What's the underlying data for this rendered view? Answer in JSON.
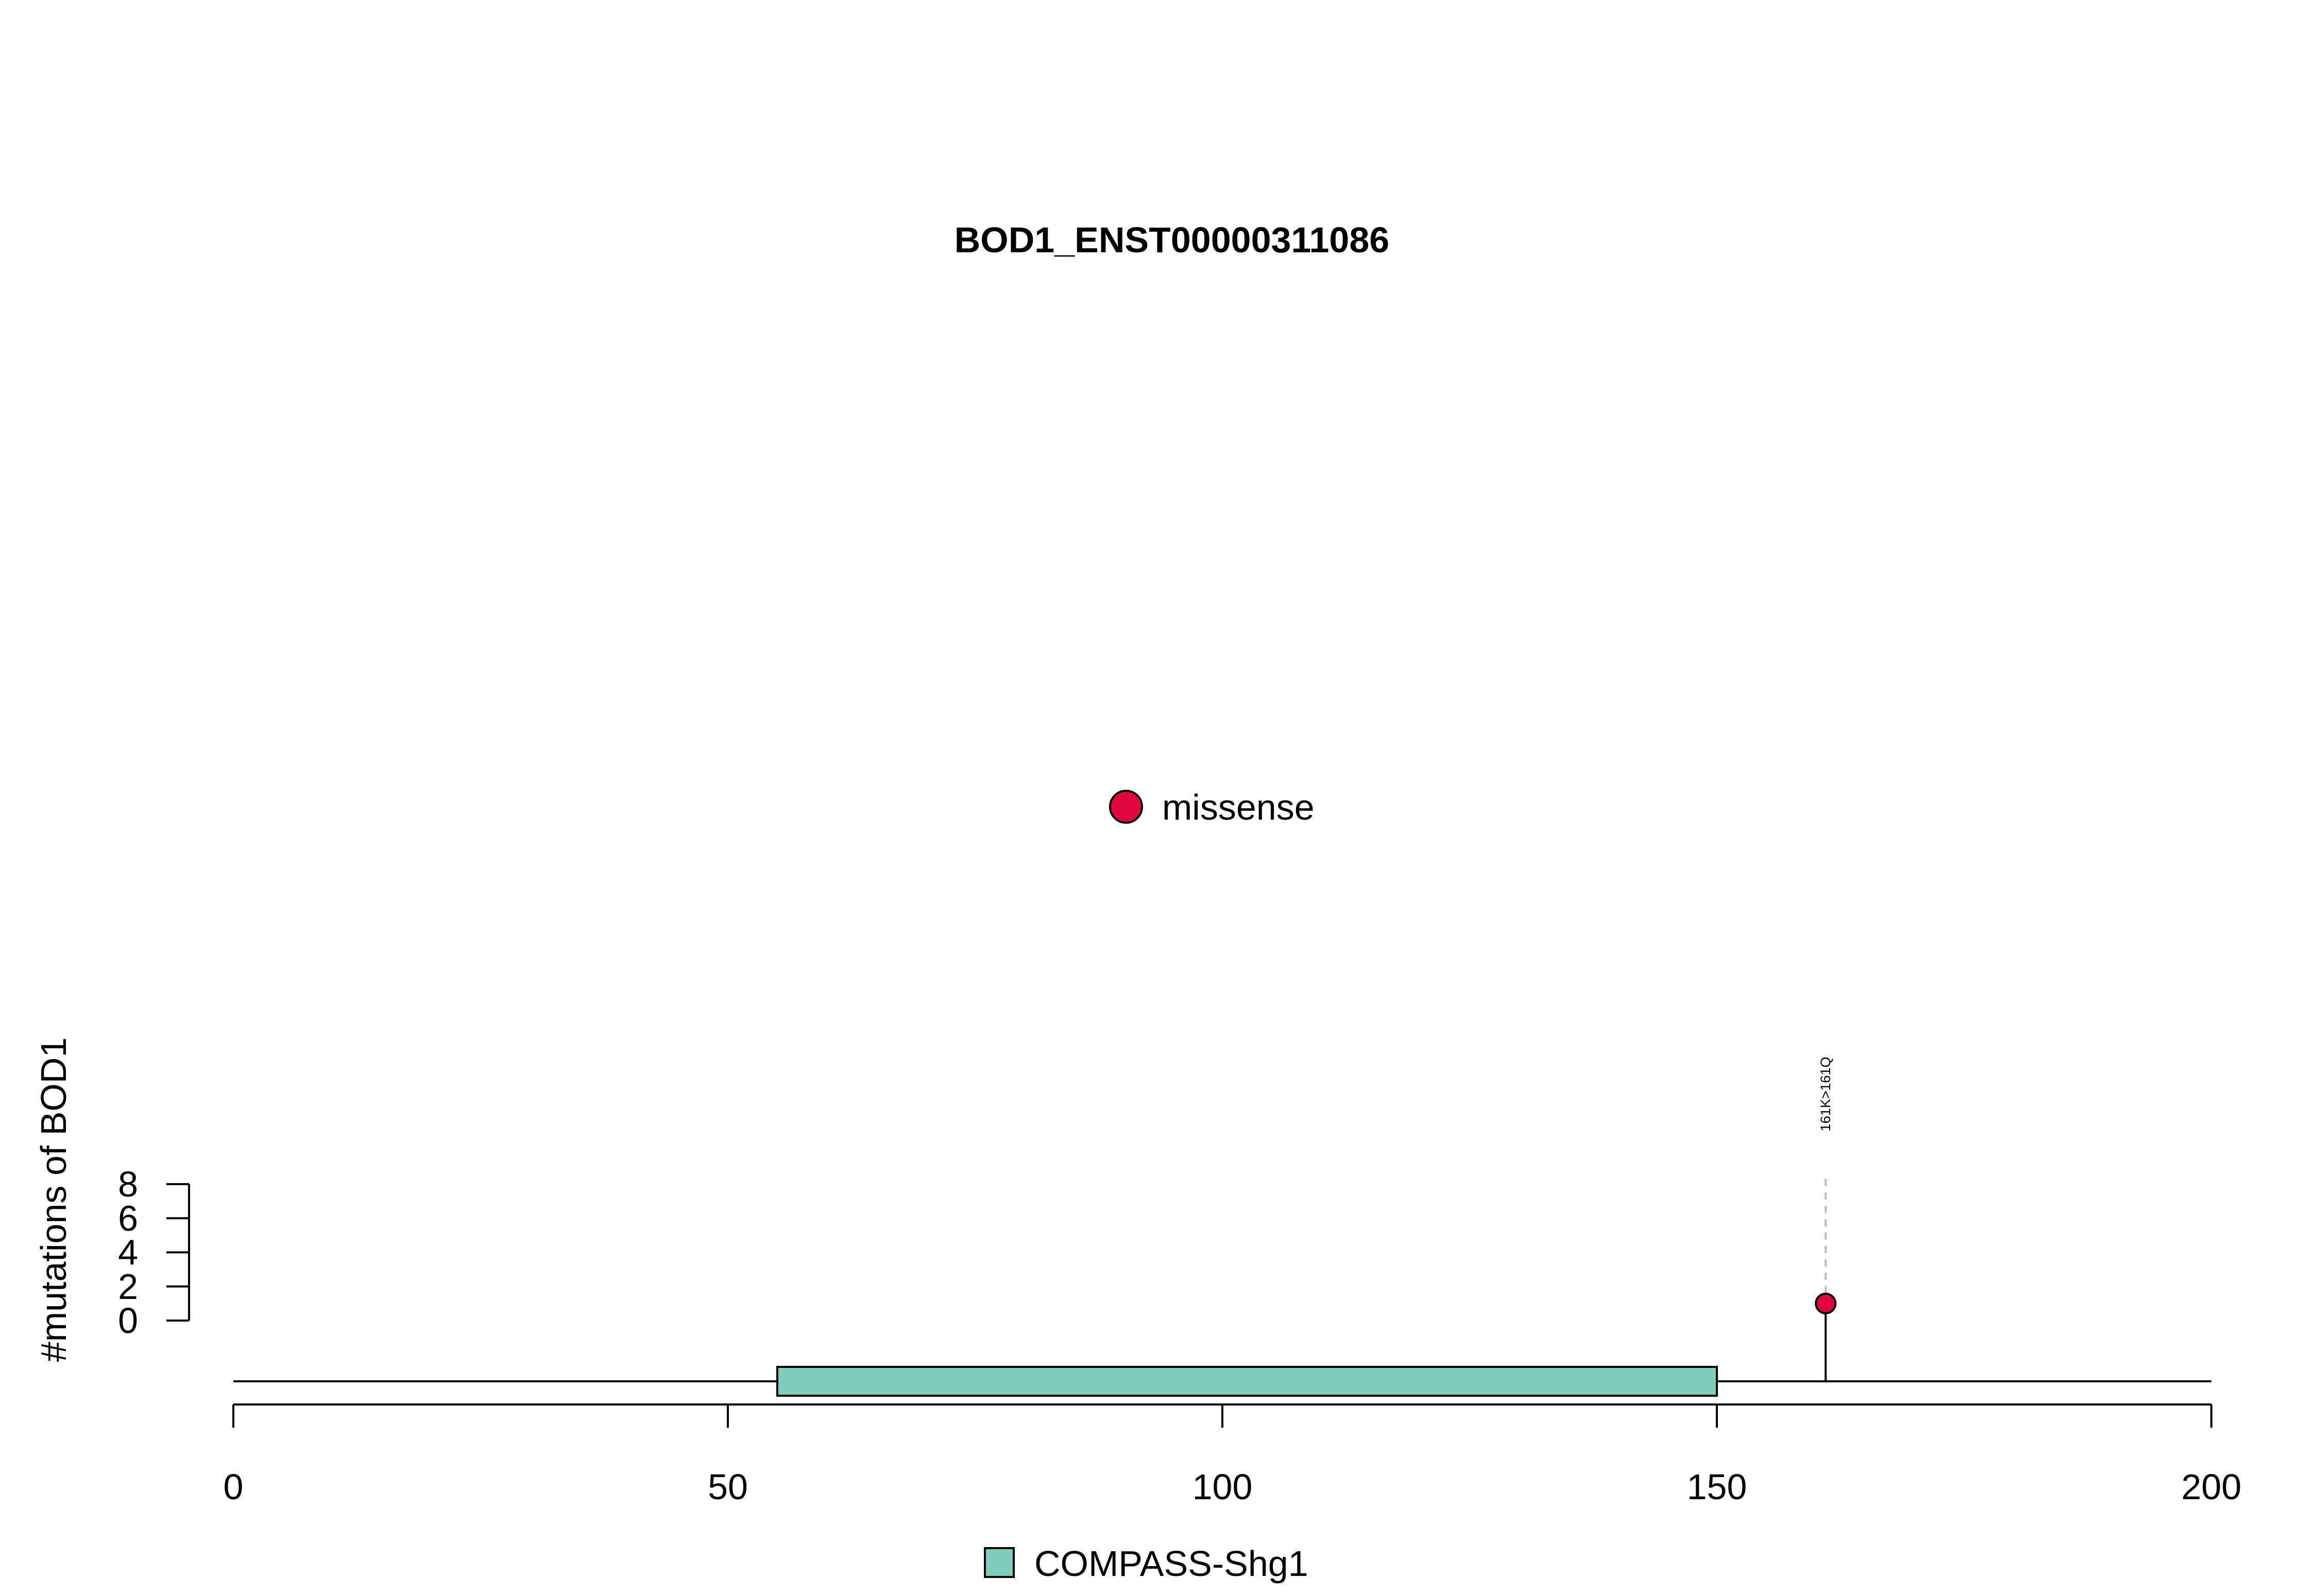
{
  "chart_data": {
    "type": "lollipop",
    "title": "BOD1_ENST00000311086",
    "xlabel": "",
    "ylabel": "#mutations of BOD1",
    "xlim": [
      0,
      200
    ],
    "ylim": [
      0,
      8
    ],
    "x_ticks": [
      0,
      50,
      100,
      150,
      200
    ],
    "y_ticks": [
      0,
      2,
      4,
      6,
      8
    ],
    "mutation_legend": [
      {
        "label": "missense",
        "color": "#e0073d"
      }
    ],
    "domain_legend": [
      {
        "label": "COMPASS-Shg1",
        "color": "#7fcdbb"
      }
    ],
    "protein_length": 200,
    "domains": [
      {
        "name": "COMPASS-Shg1",
        "start": 55,
        "end": 150,
        "color": "#7fcdbb"
      }
    ],
    "mutations": [
      {
        "position": 161,
        "count": 1,
        "label": "161K>161Q",
        "type": "missense",
        "color": "#e0073d"
      }
    ]
  }
}
